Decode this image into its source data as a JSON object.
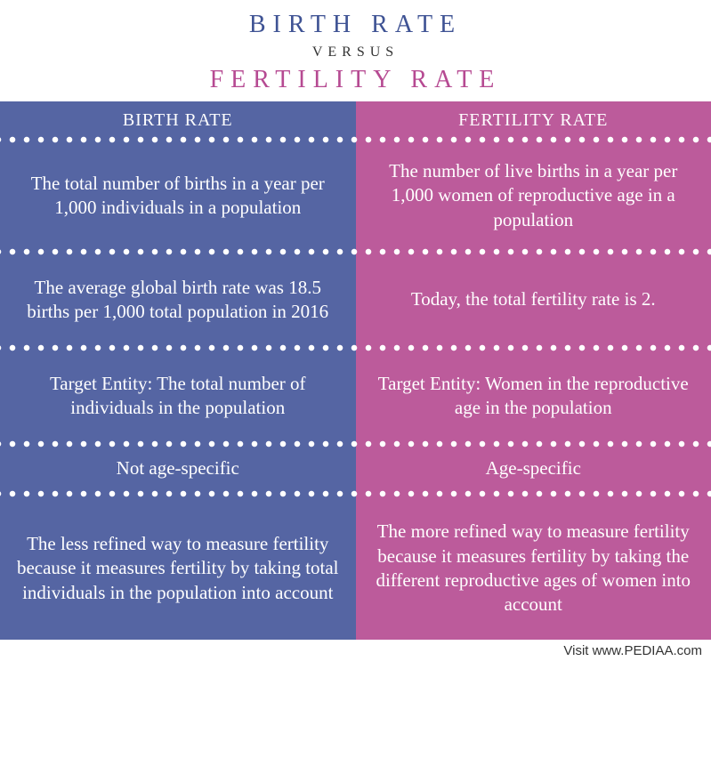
{
  "header": {
    "title_top": "BIRTH RATE",
    "versus": "VERSUS",
    "title_bottom": "FERTILITY RATE",
    "color_top": "#3f5394",
    "color_bottom": "#b64a92",
    "versus_color": "#333333"
  },
  "left": {
    "bg_color": "#5565a3",
    "divider_dot_color": "#ffffff",
    "header": "BIRTH RATE",
    "rows": [
      "The total number of births in a year per 1,000 individuals in a population",
      "The average global birth rate was 18.5 births per 1,000 total population in 2016",
      "Target Entity: The total number of individuals in the population",
      "Not age-specific",
      "The less refined way to measure fertility because it measures fertility by taking total individuals in the population into account"
    ]
  },
  "right": {
    "bg_color": "#bc5b9b",
    "divider_dot_color": "#ffffff",
    "header": "FERTILITY RATE",
    "rows": [
      "The number of live births in a year per 1,000 women of reproductive age in a population",
      "Today, the total fertility rate is 2.",
      "Target Entity: Women in the reproductive age in the population",
      "Age-specific",
      "The more refined way to measure fertility because it measures fertility by taking the different reproductive ages of women into account"
    ]
  },
  "footer": "Visit www.PEDIAA.com"
}
